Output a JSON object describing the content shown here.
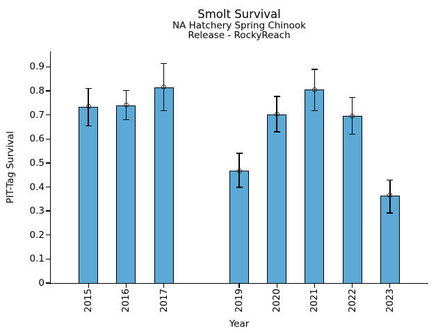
{
  "chart_data": {
    "type": "bar",
    "title": "Smolt Survival",
    "subtitle_line1": "NA Hatchery Spring Chinook",
    "subtitle_line2": "Release - RockyReach",
    "xlabel": "Year",
    "ylabel": "PIT-Tag Survival",
    "categories": [
      2015,
      2016,
      2017,
      2019,
      2020,
      2021,
      2022,
      2023
    ],
    "values": [
      0.735,
      0.741,
      0.815,
      0.467,
      0.703,
      0.805,
      0.695,
      0.365
    ],
    "error_low": [
      0.655,
      0.68,
      0.718,
      0.398,
      0.63,
      0.718,
      0.62,
      0.292
    ],
    "error_high": [
      0.81,
      0.802,
      0.915,
      0.54,
      0.777,
      0.89,
      0.773,
      0.429
    ],
    "xlim": [
      2014.0,
      2024.0
    ],
    "ylim": [
      0,
      0.962
    ],
    "yticks": [
      {
        "value": 0.0,
        "label": "0"
      },
      {
        "value": 0.1,
        "label": "0.1"
      },
      {
        "value": 0.2,
        "label": "0.2"
      },
      {
        "value": 0.3,
        "label": "0.3"
      },
      {
        "value": 0.4,
        "label": "0.4"
      },
      {
        "value": 0.5,
        "label": "0.5"
      },
      {
        "value": 0.6,
        "label": "0.6"
      },
      {
        "value": 0.7,
        "label": "0.7"
      },
      {
        "value": 0.8,
        "label": "0.8"
      },
      {
        "value": 0.9,
        "label": "0.9"
      }
    ],
    "bar_width_years": 0.52,
    "bar_color": "#5AAAD5",
    "bar_edge_color": "#000000",
    "error_bar_color": "#000000",
    "marker": "open-circle",
    "grid": false,
    "legend": null,
    "background_color": "#ffffff"
  }
}
